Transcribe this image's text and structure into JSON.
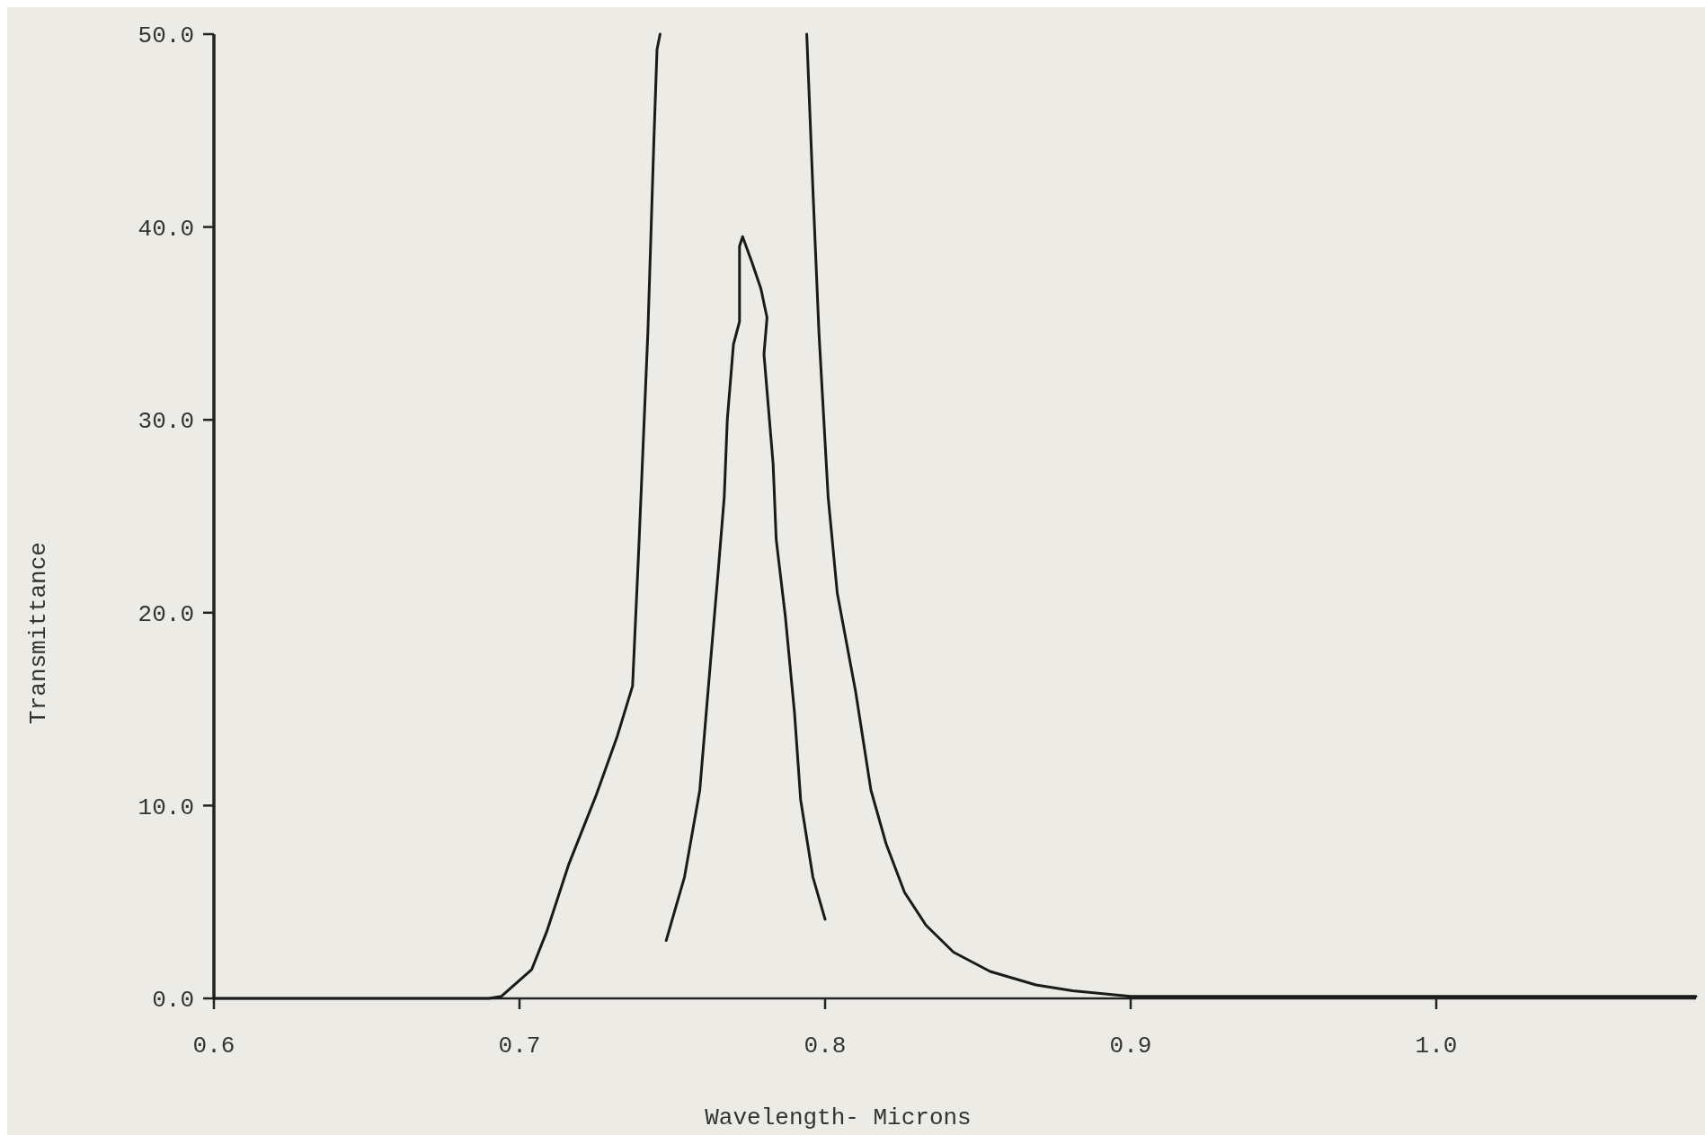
{
  "chart_data": {
    "type": "line",
    "xlabel": "Wavelength- Microns",
    "ylabel": "Transmittance",
    "xlim": [
      0.6,
      1.085
    ],
    "ylim": [
      0,
      50
    ],
    "xticks": [
      0.6,
      0.7,
      0.8,
      0.9,
      {
        "value": 1,
        "label": "1.0"
      }
    ],
    "yticks": [
      {
        "value": 0,
        "label": "0.0"
      },
      {
        "value": 10,
        "label": "10.0"
      },
      {
        "value": 20,
        "label": "20.0"
      },
      {
        "value": 30,
        "label": "30.0"
      },
      {
        "value": 40,
        "label": "40.0"
      },
      {
        "value": 50,
        "label": "50.0"
      }
    ],
    "grid": false,
    "marker": "none",
    "line_style": "solid",
    "series": [
      {
        "color": "#1a1a1a",
        "x": [
          0.6,
          0.69,
          0.694,
          0.704,
          0.709,
          0.716,
          0.725,
          0.732,
          0.737,
          0.739,
          0.742,
          0.744,
          0.745,
          0.746
        ],
        "values": [
          0,
          0,
          0.1,
          1.5,
          3.5,
          6.9,
          10.5,
          13.6,
          16.2,
          23.2,
          34.5,
          44.6,
          49.2,
          50
        ]
      },
      {
        "color": "#1a1a1a",
        "x": [
          0.794,
          0.796,
          0.798,
          0.801,
          0.804,
          0.81,
          0.815,
          0.82,
          0.826,
          0.833,
          0.842,
          0.854,
          0.869,
          0.881,
          0.9,
          1.0,
          1.085
        ],
        "values": [
          50,
          42,
          34.5,
          26,
          21,
          15.9,
          10.8,
          8,
          5.5,
          3.8,
          2.4,
          1.4,
          0.7,
          0.4,
          0.1,
          0.1,
          0.1
        ]
      },
      {
        "color": "#1a1a1a",
        "x": [
          0.748,
          0.754,
          0.759,
          0.762,
          0.765,
          0.767,
          0.768,
          0.77,
          0.772,
          0.772,
          0.773,
          0.776,
          0.779,
          0.781,
          0.78,
          0.783,
          0.784,
          0.787,
          0.79,
          0.792,
          0.796,
          0.8
        ],
        "values": [
          3,
          6.3,
          10.8,
          16.5,
          22.1,
          26,
          30,
          33.9,
          35.1,
          39,
          39.5,
          38.2,
          36.8,
          35.3,
          33.4,
          27.7,
          23.8,
          19.8,
          14.8,
          10.3,
          6.3,
          4.1
        ]
      }
    ]
  }
}
